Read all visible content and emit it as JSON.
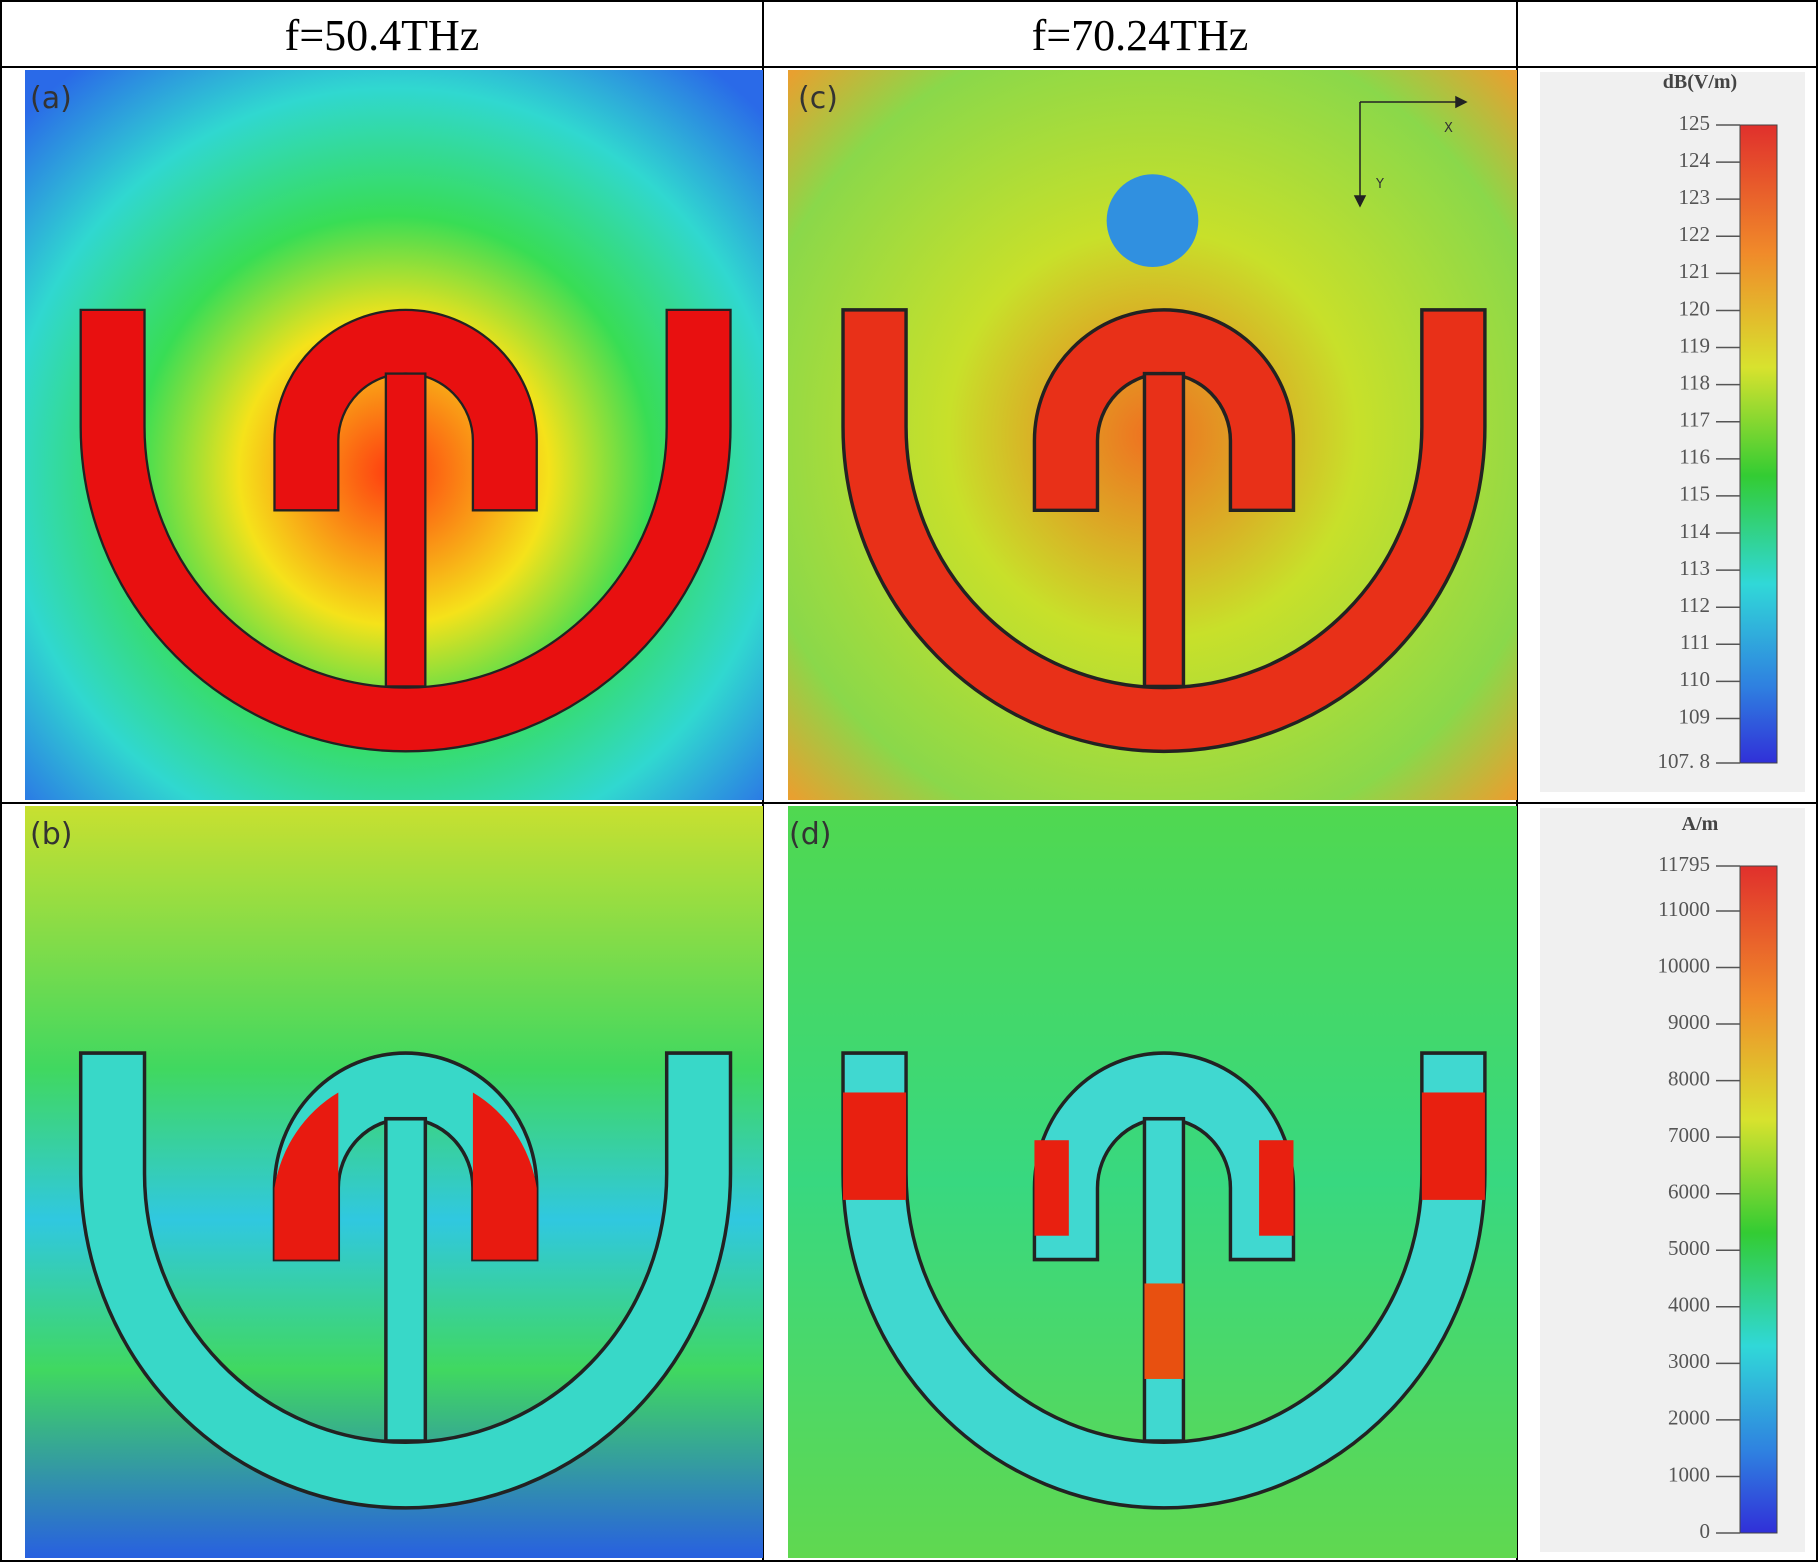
{
  "header": {
    "columns": [
      "f=50.4THz",
      "f=70.24THz"
    ]
  },
  "panels": [
    {
      "label": "(a)"
    },
    {
      "label": "(b)"
    },
    {
      "label": "(c)"
    },
    {
      "label": "(d)"
    }
  ],
  "axis_indicator": {
    "x": "X",
    "y": "Y"
  },
  "colorbars": [
    {
      "unit": "dB(V/m)",
      "lim": [
        107.8,
        125
      ],
      "ticks": [
        125,
        124,
        123,
        122,
        121,
        120,
        119,
        118,
        117,
        116,
        115,
        114,
        113,
        112,
        111,
        110,
        109,
        {
          "value": 107.8,
          "label": "107. 8"
        }
      ]
    },
    {
      "unit": "A/m",
      "lim": [
        0,
        11795
      ],
      "ticks": [
        11795,
        11000,
        10000,
        9000,
        8000,
        7000,
        6000,
        5000,
        4000,
        3000,
        2000,
        1000,
        0
      ]
    }
  ]
}
